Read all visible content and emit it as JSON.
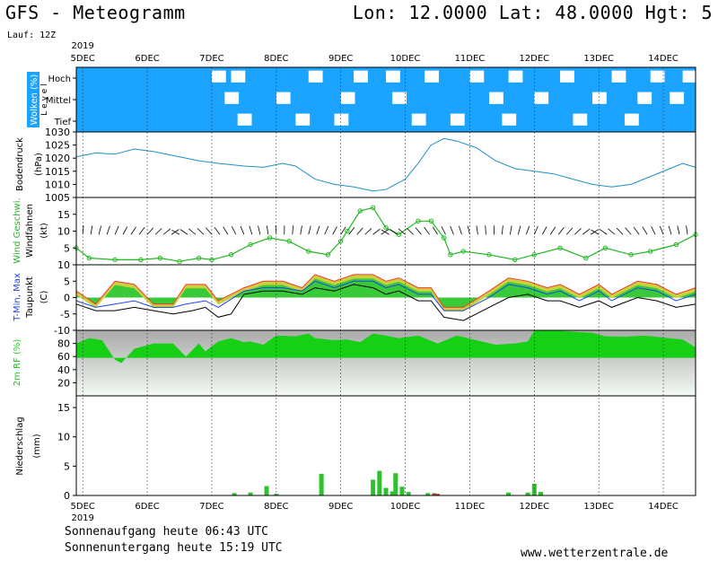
{
  "header": {
    "title_left": "GFS - Meteogramm",
    "title_right": "Lon: 12.0000 Lat: 48.0000 Hgt: 5",
    "run_label": "Lauf: 12Z"
  },
  "footer": {
    "sunrise": "Sonnenaufgang heute 06:43 UTC",
    "sunset": "Sonnenuntergang heute 15:19 UTC",
    "site": "www.wetterzentrale.de"
  },
  "colors": {
    "cloud": "#1aa3ff",
    "pressure_line": "#1e90c8",
    "wind_line": "#22b822",
    "tmax_red": "#ff3333",
    "tmax_yellow": "#c8d23c",
    "temp_green": "#22c422",
    "tmin_blue": "#2244ee",
    "dewpoint": "#000000",
    "rh_green": "#16d016",
    "precip_green": "#2ec02e",
    "precip_red": "#e03030"
  },
  "chart_data": {
    "type": "meteogram",
    "x_axis": {
      "year": "2019",
      "tick_labels": [
        "5DEC",
        "6DEC",
        "7DEC",
        "8DEC",
        "9DEC",
        "10DEC",
        "11DEC",
        "12DEC",
        "13DEC",
        "14DEC"
      ],
      "range_days": [
        4.9,
        14.5
      ]
    },
    "clouds": {
      "ylabel": "Wolken (%)",
      "level_label": "L e v e l",
      "levels": [
        "Hoch",
        "Mittel",
        "Tief"
      ],
      "cells": [
        {
          "day": 7.0,
          "level": "Hoch",
          "cover": 0
        },
        {
          "day": 7.3,
          "level": "Hoch",
          "cover": 0
        },
        {
          "day": 8.5,
          "level": "Hoch",
          "cover": 0
        },
        {
          "day": 9.2,
          "level": "Hoch",
          "cover": 0
        },
        {
          "day": 9.7,
          "level": "Hoch",
          "cover": 0
        },
        {
          "day": 10.3,
          "level": "Hoch",
          "cover": 0
        },
        {
          "day": 11.0,
          "level": "Hoch",
          "cover": 0
        },
        {
          "day": 11.6,
          "level": "Hoch",
          "cover": 0
        },
        {
          "day": 12.4,
          "level": "Hoch",
          "cover": 0
        },
        {
          "day": 13.2,
          "level": "Hoch",
          "cover": 0
        },
        {
          "day": 13.8,
          "level": "Hoch",
          "cover": 0
        },
        {
          "day": 14.3,
          "level": "Hoch",
          "cover": 0
        },
        {
          "day": 7.2,
          "level": "Mittel",
          "cover": 0
        },
        {
          "day": 8.0,
          "level": "Mittel",
          "cover": 0
        },
        {
          "day": 9.0,
          "level": "Mittel",
          "cover": 0
        },
        {
          "day": 9.8,
          "level": "Mittel",
          "cover": 0
        },
        {
          "day": 11.3,
          "level": "Mittel",
          "cover": 0
        },
        {
          "day": 12.0,
          "level": "Mittel",
          "cover": 0
        },
        {
          "day": 12.9,
          "level": "Mittel",
          "cover": 0
        },
        {
          "day": 13.6,
          "level": "Mittel",
          "cover": 0
        },
        {
          "day": 14.1,
          "level": "Mittel",
          "cover": 0
        },
        {
          "day": 7.4,
          "level": "Tief",
          "cover": 0
        },
        {
          "day": 8.3,
          "level": "Tief",
          "cover": 0
        },
        {
          "day": 8.9,
          "level": "Tief",
          "cover": 0
        },
        {
          "day": 10.1,
          "level": "Tief",
          "cover": 0
        },
        {
          "day": 10.7,
          "level": "Tief",
          "cover": 0
        },
        {
          "day": 11.5,
          "level": "Tief",
          "cover": 0
        },
        {
          "day": 12.6,
          "level": "Tief",
          "cover": 0
        },
        {
          "day": 13.4,
          "level": "Tief",
          "cover": 0
        }
      ]
    },
    "pressure": {
      "ylabel_1": "Bodendruck",
      "ylabel_2": "(hPa)",
      "ylim": [
        1005,
        1030
      ],
      "ticks": [
        1005,
        1010,
        1015,
        1020,
        1025,
        1030
      ],
      "points": [
        [
          4.9,
          1020.5
        ],
        [
          5.2,
          1022
        ],
        [
          5.5,
          1021.5
        ],
        [
          5.8,
          1023.5
        ],
        [
          6.1,
          1022.5
        ],
        [
          6.4,
          1021
        ],
        [
          6.8,
          1019
        ],
        [
          7.1,
          1018
        ],
        [
          7.5,
          1017
        ],
        [
          7.8,
          1016.5
        ],
        [
          8.1,
          1018
        ],
        [
          8.3,
          1017
        ],
        [
          8.6,
          1012
        ],
        [
          8.9,
          1010
        ],
        [
          9.2,
          1009
        ],
        [
          9.5,
          1007.5
        ],
        [
          9.7,
          1008
        ],
        [
          10.0,
          1012
        ],
        [
          10.2,
          1018
        ],
        [
          10.4,
          1025
        ],
        [
          10.6,
          1027.5
        ],
        [
          10.8,
          1026.5
        ],
        [
          11.1,
          1024
        ],
        [
          11.4,
          1019
        ],
        [
          11.7,
          1016
        ],
        [
          12.0,
          1015
        ],
        [
          12.3,
          1014
        ],
        [
          12.6,
          1012
        ],
        [
          12.9,
          1010
        ],
        [
          13.2,
          1009
        ],
        [
          13.5,
          1010
        ],
        [
          13.8,
          1013
        ],
        [
          14.1,
          1016
        ],
        [
          14.3,
          1018
        ],
        [
          14.5,
          1016.5
        ]
      ]
    },
    "wind": {
      "ylabel_1": "Wind Geschwi.",
      "ylabel_2": "Windfahnen",
      "ylabel_3": "(kt)",
      "ylim": [
        0,
        20
      ],
      "ticks": [
        5,
        10,
        15
      ],
      "points": [
        [
          4.9,
          5
        ],
        [
          5.1,
          2
        ],
        [
          5.5,
          1.5
        ],
        [
          5.9,
          1.5
        ],
        [
          6.2,
          2
        ],
        [
          6.5,
          1
        ],
        [
          6.8,
          2
        ],
        [
          7.0,
          1.5
        ],
        [
          7.3,
          3
        ],
        [
          7.6,
          6
        ],
        [
          7.9,
          8
        ],
        [
          8.2,
          7
        ],
        [
          8.5,
          4
        ],
        [
          8.8,
          3
        ],
        [
          9.0,
          7
        ],
        [
          9.1,
          10
        ],
        [
          9.3,
          16
        ],
        [
          9.5,
          17
        ],
        [
          9.7,
          11
        ],
        [
          9.9,
          9
        ],
        [
          10.2,
          13
        ],
        [
          10.4,
          13
        ],
        [
          10.6,
          8
        ],
        [
          10.7,
          3
        ],
        [
          10.9,
          4
        ],
        [
          11.3,
          3
        ],
        [
          11.7,
          1.5
        ],
        [
          12.0,
          3
        ],
        [
          12.4,
          5
        ],
        [
          12.8,
          2
        ],
        [
          13.1,
          5
        ],
        [
          13.5,
          3
        ],
        [
          13.8,
          4
        ],
        [
          14.2,
          6
        ],
        [
          14.5,
          9
        ]
      ]
    },
    "temperature": {
      "ylabel_1": "T-Min, Max",
      "ylabel_2": "Taupunkt",
      "ylabel_3": "(C)",
      "ylim": [
        -10,
        10
      ],
      "ticks": [
        -10,
        -5,
        0,
        5,
        10
      ],
      "tmax": [
        [
          4.9,
          2
        ],
        [
          5.2,
          -2
        ],
        [
          5.5,
          5
        ],
        [
          5.8,
          4
        ],
        [
          6.1,
          -2
        ],
        [
          6.4,
          -2
        ],
        [
          6.6,
          4
        ],
        [
          6.9,
          4
        ],
        [
          7.1,
          -1
        ],
        [
          7.5,
          3
        ],
        [
          7.8,
          5
        ],
        [
          8.1,
          5
        ],
        [
          8.4,
          3
        ],
        [
          8.6,
          7
        ],
        [
          8.9,
          5
        ],
        [
          9.2,
          7
        ],
        [
          9.5,
          7
        ],
        [
          9.7,
          5
        ],
        [
          9.9,
          6
        ],
        [
          10.2,
          3
        ],
        [
          10.4,
          3
        ],
        [
          10.6,
          -3
        ],
        [
          10.9,
          -3
        ],
        [
          11.3,
          2
        ],
        [
          11.6,
          6
        ],
        [
          11.9,
          5
        ],
        [
          12.2,
          3
        ],
        [
          12.4,
          4
        ],
        [
          12.7,
          1
        ],
        [
          13.0,
          4
        ],
        [
          13.2,
          1
        ],
        [
          13.6,
          5
        ],
        [
          13.9,
          4
        ],
        [
          14.2,
          1
        ],
        [
          14.5,
          3
        ]
      ],
      "tmin": [
        [
          4.9,
          -1
        ],
        [
          5.2,
          -3
        ],
        [
          5.5,
          -2
        ],
        [
          5.8,
          -1
        ],
        [
          6.1,
          -3
        ],
        [
          6.4,
          -3
        ],
        [
          6.6,
          -2
        ],
        [
          6.9,
          -1
        ],
        [
          7.1,
          -3
        ],
        [
          7.5,
          2
        ],
        [
          7.8,
          3
        ],
        [
          8.1,
          3
        ],
        [
          8.4,
          2
        ],
        [
          8.6,
          5
        ],
        [
          8.9,
          3
        ],
        [
          9.2,
          5
        ],
        [
          9.5,
          5
        ],
        [
          9.7,
          3
        ],
        [
          9.9,
          4
        ],
        [
          10.2,
          1
        ],
        [
          10.4,
          1
        ],
        [
          10.6,
          -4
        ],
        [
          10.9,
          -4
        ],
        [
          11.3,
          0
        ],
        [
          11.6,
          4
        ],
        [
          11.9,
          3
        ],
        [
          12.2,
          1
        ],
        [
          12.4,
          2
        ],
        [
          12.7,
          -1
        ],
        [
          13.0,
          2
        ],
        [
          13.2,
          -1
        ],
        [
          13.6,
          3
        ],
        [
          13.9,
          2
        ],
        [
          14.2,
          -1
        ],
        [
          14.5,
          1
        ]
      ],
      "dewpoint": [
        [
          4.9,
          -2
        ],
        [
          5.2,
          -4
        ],
        [
          5.5,
          -4
        ],
        [
          5.8,
          -3
        ],
        [
          6.1,
          -4
        ],
        [
          6.4,
          -5
        ],
        [
          6.7,
          -4
        ],
        [
          6.9,
          -3
        ],
        [
          7.1,
          -6
        ],
        [
          7.3,
          -5
        ],
        [
          7.5,
          1
        ],
        [
          7.8,
          2
        ],
        [
          8.1,
          2
        ],
        [
          8.4,
          1
        ],
        [
          8.6,
          3
        ],
        [
          8.9,
          2
        ],
        [
          9.2,
          4
        ],
        [
          9.5,
          3
        ],
        [
          9.7,
          1
        ],
        [
          9.9,
          2
        ],
        [
          10.2,
          -1
        ],
        [
          10.4,
          -1
        ],
        [
          10.6,
          -6
        ],
        [
          10.9,
          -7
        ],
        [
          11.3,
          -3
        ],
        [
          11.6,
          0
        ],
        [
          11.9,
          1
        ],
        [
          12.2,
          -1
        ],
        [
          12.4,
          -1
        ],
        [
          12.7,
          -3
        ],
        [
          13.0,
          -1
        ],
        [
          13.2,
          -3
        ],
        [
          13.6,
          0
        ],
        [
          13.9,
          -1
        ],
        [
          14.2,
          -3
        ],
        [
          14.5,
          -2
        ]
      ]
    },
    "humidity": {
      "ylabel": "2m RF (%)",
      "ylim": [
        0,
        100
      ],
      "ticks": [
        20,
        40,
        60,
        80
      ],
      "points": [
        [
          4.9,
          80
        ],
        [
          5.1,
          88
        ],
        [
          5.3,
          85
        ],
        [
          5.5,
          55
        ],
        [
          5.6,
          50
        ],
        [
          5.8,
          72
        ],
        [
          6.1,
          80
        ],
        [
          6.4,
          80
        ],
        [
          6.6,
          60
        ],
        [
          6.8,
          80
        ],
        [
          6.9,
          68
        ],
        [
          7.1,
          83
        ],
        [
          7.3,
          88
        ],
        [
          7.5,
          82
        ],
        [
          7.6,
          83
        ],
        [
          7.8,
          78
        ],
        [
          8.0,
          92
        ],
        [
          8.3,
          91
        ],
        [
          8.5,
          95
        ],
        [
          8.6,
          88
        ],
        [
          8.9,
          85
        ],
        [
          9.1,
          86
        ],
        [
          9.3,
          82
        ],
        [
          9.5,
          95
        ],
        [
          9.7,
          92
        ],
        [
          9.9,
          88
        ],
        [
          10.2,
          92
        ],
        [
          10.5,
          80
        ],
        [
          10.8,
          92
        ],
        [
          11.1,
          85
        ],
        [
          11.4,
          78
        ],
        [
          11.7,
          80
        ],
        [
          11.9,
          83
        ],
        [
          12.0,
          100
        ],
        [
          12.3,
          100
        ],
        [
          12.6,
          98
        ],
        [
          12.9,
          96
        ],
        [
          13.1,
          91
        ],
        [
          13.4,
          90
        ],
        [
          13.7,
          92
        ],
        [
          14.0,
          89
        ],
        [
          14.3,
          86
        ],
        [
          14.5,
          74
        ]
      ]
    },
    "precipitation": {
      "ylabel_1": "Niederschlag",
      "ylabel_2": "(mm)",
      "ylim": [
        0,
        17
      ],
      "ticks": [
        0,
        5,
        10,
        15
      ],
      "bars": [
        [
          7.35,
          0.4
        ],
        [
          7.6,
          0.5
        ],
        [
          7.85,
          1.6
        ],
        [
          8.0,
          0.3
        ],
        [
          8.7,
          3.7
        ],
        [
          9.5,
          2.7
        ],
        [
          9.6,
          4.2
        ],
        [
          9.7,
          1.3
        ],
        [
          9.8,
          0.7
        ],
        [
          9.85,
          3.8
        ],
        [
          9.95,
          1.5
        ],
        [
          10.05,
          0.6
        ],
        [
          10.35,
          0.4
        ],
        [
          10.45,
          0.4
        ],
        [
          10.5,
          0.3
        ],
        [
          11.6,
          0.5
        ],
        [
          11.9,
          0.5
        ],
        [
          12.0,
          2.0
        ],
        [
          12.1,
          0.6
        ]
      ],
      "red_bars": [
        [
          10.45,
          0.3
        ],
        [
          10.5,
          0.2
        ]
      ]
    }
  }
}
